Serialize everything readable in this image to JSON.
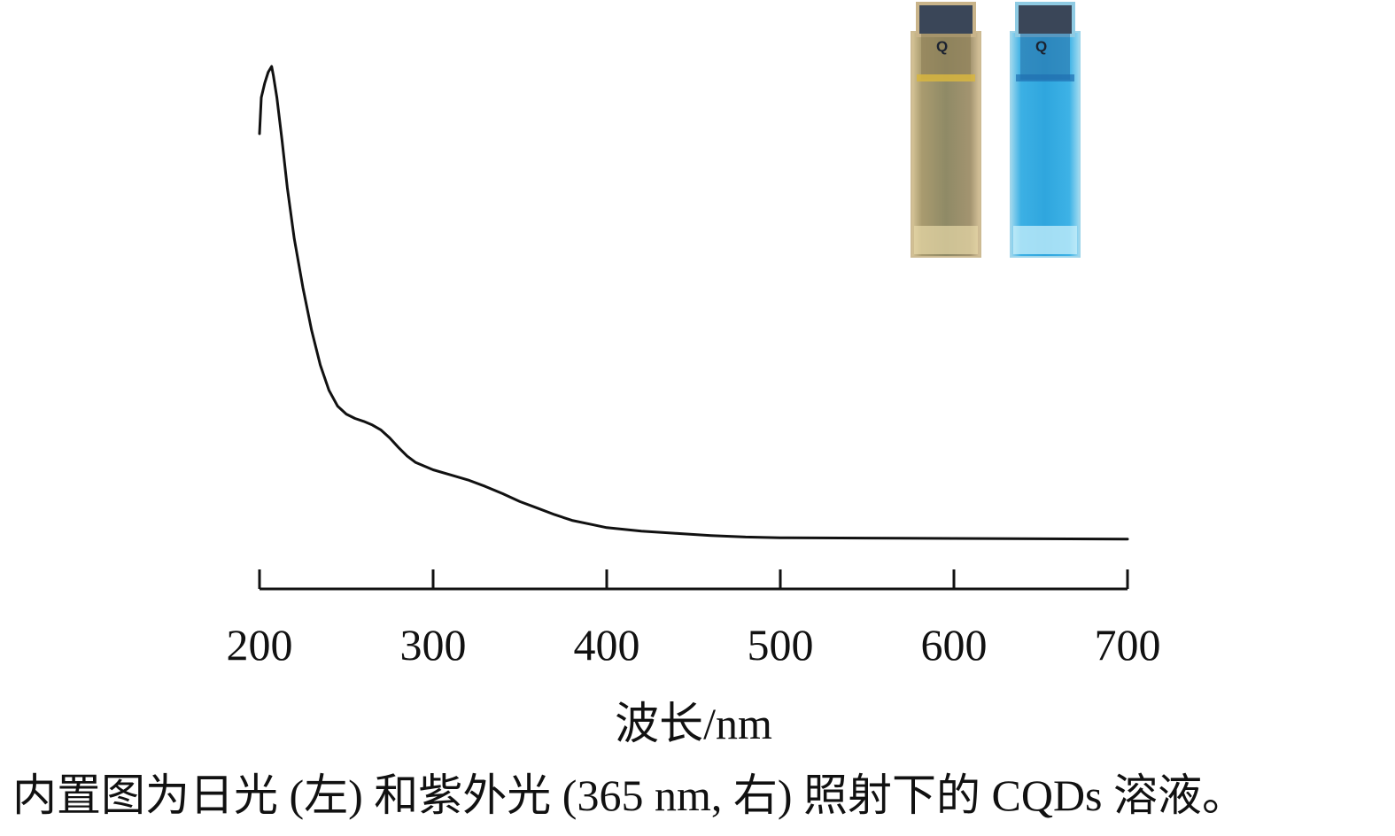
{
  "chart_data": {
    "type": "line",
    "title": "",
    "xlabel": "波长/nm",
    "ylabel": "",
    "xlim": [
      200,
      700
    ],
    "x_ticks": [
      200,
      300,
      400,
      500,
      600,
      700
    ],
    "tick_labels": [
      "200",
      "300",
      "400",
      "500",
      "600",
      "700"
    ],
    "grid": false,
    "legend": "none",
    "series": [
      {
        "color": "#111111",
        "x": [
          200,
          201,
          203,
          205,
          207,
          208,
          210,
          213,
          216,
          220,
          225,
          230,
          235,
          240,
          245,
          250,
          255,
          260,
          265,
          270,
          275,
          280,
          285,
          290,
          295,
          300,
          310,
          320,
          330,
          340,
          350,
          360,
          370,
          380,
          390,
          400,
          420,
          440,
          460,
          480,
          500,
          550,
          600,
          650,
          700
        ],
        "y": [
          0.56,
          0.61,
          0.63,
          0.645,
          0.653,
          0.64,
          0.61,
          0.55,
          0.485,
          0.415,
          0.347,
          0.288,
          0.24,
          0.205,
          0.183,
          0.172,
          0.166,
          0.162,
          0.157,
          0.15,
          0.139,
          0.126,
          0.114,
          0.105,
          0.1,
          0.095,
          0.088,
          0.081,
          0.072,
          0.062,
          0.051,
          0.042,
          0.033,
          0.025,
          0.02,
          0.015,
          0.01,
          0.007,
          0.004,
          0.002,
          0.001,
          0.0005,
          0.0,
          -0.0005,
          -0.001
        ]
      }
    ],
    "inset": {
      "cuvettes": [
        {
          "liquid_color": "#b8a772",
          "glass_color": "#e8d9b8"
        },
        {
          "liquid_color": "#3fb3e6",
          "glass_color": "#bfe6f5"
        }
      ],
      "cap_color": "#3a4658",
      "cap_letter": "Q"
    }
  },
  "caption": "内置图为日光 (左) 和紫外光 (365 nm, 右) 照射下的 CQDs 溶液。"
}
